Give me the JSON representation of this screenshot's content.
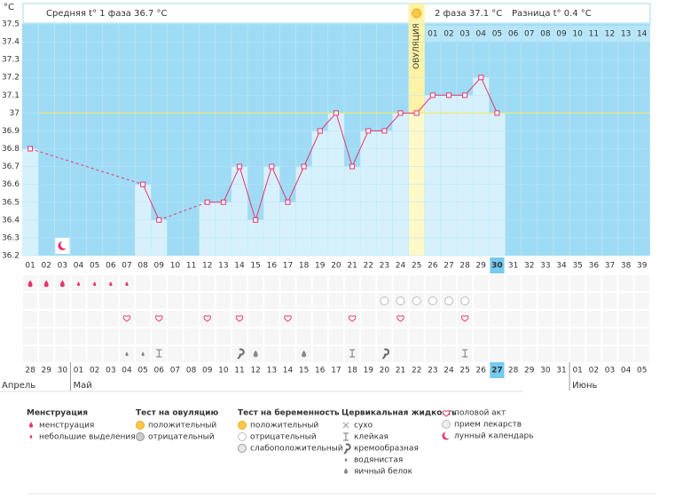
{
  "header": {
    "unit": "°C",
    "phase1": "Средняя t° 1 фаза 36.7 °C",
    "phase2": "2 фаза 37.1 °C",
    "difference": "Разница t° 0.4 °C",
    "ovulation": "ОВУЛЯЦИЯ"
  },
  "chart_data": {
    "type": "bar",
    "categories": [
      "01",
      "02",
      "03",
      "04",
      "05",
      "06",
      "07",
      "08",
      "09",
      "10",
      "11",
      "12",
      "13",
      "14",
      "15",
      "16",
      "17",
      "18",
      "19",
      "20",
      "21",
      "22",
      "23",
      "24",
      "25",
      "26",
      "27",
      "28",
      "29",
      "30",
      "31",
      "32",
      "33",
      "34",
      "35",
      "36",
      "37",
      "38",
      "39"
    ],
    "values": [
      36.8,
      null,
      null,
      null,
      null,
      null,
      null,
      36.6,
      36.4,
      null,
      null,
      36.5,
      36.5,
      36.7,
      36.4,
      36.7,
      36.5,
      36.7,
      36.9,
      37.0,
      36.7,
      36.9,
      36.9,
      37.0,
      37.0,
      37.1,
      37.1,
      37.1,
      37.2,
      37.0,
      null,
      null,
      null,
      null,
      null,
      null,
      null,
      null,
      null
    ],
    "phase2_days": [
      "01",
      "02",
      "03",
      "04",
      "05",
      "06",
      "07",
      "08",
      "09",
      "10",
      "11",
      "12",
      "13",
      "14"
    ],
    "ylim": [
      36.2,
      37.5
    ],
    "yticks": [
      37.5,
      37.4,
      37.3,
      37.2,
      37.1,
      37,
      36.9,
      36.8,
      36.7,
      36.6,
      36.5,
      36.4,
      36.3,
      36.2
    ],
    "color": "#d7f1fc",
    "line_color": "#e8336e",
    "grid": true
  },
  "calendar": {
    "dates": [
      "28",
      "29",
      "30",
      "01",
      "02",
      "03",
      "04",
      "05",
      "06",
      "07",
      "08",
      "09",
      "10",
      "11",
      "12",
      "13",
      "14",
      "15",
      "16",
      "17",
      "18",
      "19",
      "20",
      "21",
      "22",
      "23",
      "24",
      "25",
      "26",
      "27",
      "28",
      "29",
      "30",
      "31",
      "01",
      "02",
      "03",
      "04",
      "05"
    ],
    "months": [
      "Апрель",
      "Май",
      "Июнь"
    ]
  },
  "legend": [
    {
      "title": "Менструация",
      "items": [
        "менструация",
        "небольшие выделения"
      ]
    },
    {
      "title": "Тест на овуляцию",
      "items": [
        "положительный",
        "отрицательный"
      ]
    },
    {
      "title": "Тест на беременность",
      "items": [
        "положительный",
        "отрицательный",
        "слабоположительный"
      ]
    },
    {
      "title": "Цервикальная жидкость",
      "items": [
        "сухо",
        "клейкая",
        "кремообразная",
        "водянистая",
        "яичный белок"
      ]
    },
    {
      "items": [
        "половой акт",
        "прием лекарств",
        "лунный календарь"
      ]
    }
  ]
}
